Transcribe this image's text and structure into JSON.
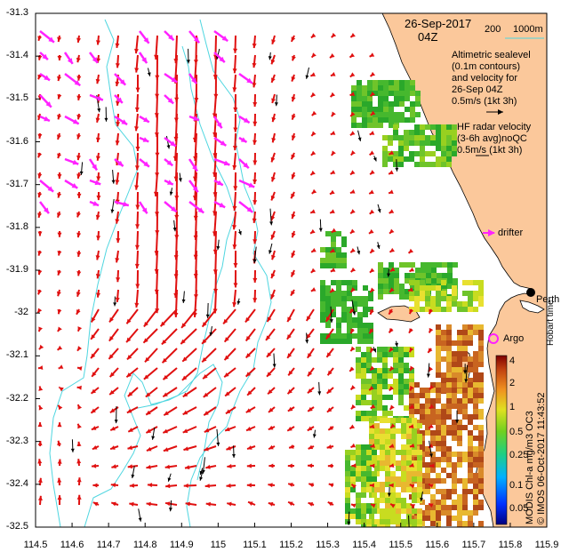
{
  "title": {
    "date": "26-Sep-2017",
    "time": "04Z",
    "depth_legend_200": "200",
    "depth_legend_1000": "1000m"
  },
  "legend": {
    "altimetric_line1": "Altimetric sealevel",
    "altimetric_line2": "(0.1m contours)",
    "altimetric_line3": "and velocity for",
    "altimetric_line4": "26-Sep 04Z",
    "altimetric_scale": "0.5m/s (1kt 3h)",
    "hf_line1": "HF radar velocity",
    "hf_line2": "(3-6h avg)noQC",
    "hf_scale": "0.5m/s (1kt 3h)",
    "drifter": "drifter",
    "argo": "Argo",
    "perth": "Perth",
    "hobart_time": "Hobart time"
  },
  "side_caption": {
    "imos": "© IMOS 06-Oct-2017 11:43:52",
    "modis": "MODIS Chl-a mg/m3 OC3"
  },
  "colorbar": {
    "ticks": [
      "4",
      "2",
      "1",
      "0.5",
      "0.25",
      "0.1",
      "0.05"
    ],
    "tick_values": [
      4,
      2,
      1,
      0.5,
      0.25,
      0.1,
      0.05
    ]
  },
  "axes": {
    "x_ticks": [
      "114.5",
      "114.6",
      "114.7",
      "114.8",
      "114.9",
      "115",
      "115.1",
      "115.2",
      "115.3",
      "115.4",
      "115.5",
      "115.6",
      "115.7",
      "115.8",
      "115.9"
    ],
    "y_ticks": [
      "-31.3",
      "-31.4",
      "-31.5",
      "-31.6",
      "-31.7",
      "-31.8",
      "-31.9",
      "-32",
      "-32.1",
      "-32.2",
      "-32.3",
      "-32.4",
      "-32.5"
    ],
    "lon_range": [
      114.5,
      115.9
    ],
    "lat_range": [
      -32.5,
      -31.3
    ]
  },
  "colors": {
    "land": "#fbc89b",
    "contour": "#4fd6e0",
    "altimetry_arrow": "#e01010",
    "hf_arrow": "#000000",
    "drifter": "#ff22ff",
    "argo": "#ff22ff"
  }
}
